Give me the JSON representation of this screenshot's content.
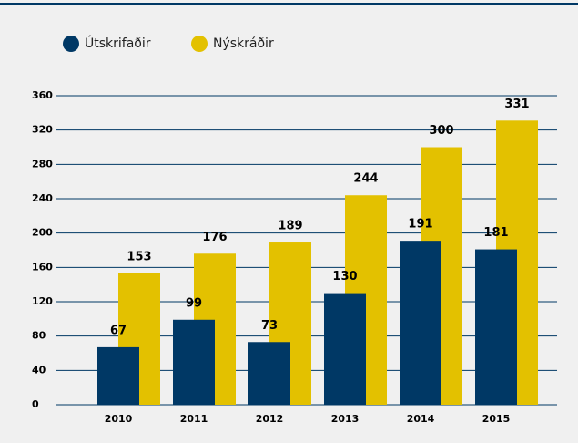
{
  "chart_data": {
    "type": "bar",
    "categories": [
      "2010",
      "2011",
      "2012",
      "2013",
      "2014",
      "2015"
    ],
    "series": [
      {
        "name": "Útskrifaðir",
        "color": "#003865",
        "values": [
          67,
          99,
          73,
          130,
          191,
          181
        ]
      },
      {
        "name": "Nýskráðir",
        "color": "#e3c100",
        "values": [
          153,
          176,
          189,
          244,
          300,
          331
        ]
      }
    ],
    "ylim": [
      0,
      360
    ],
    "yticks": [
      0,
      40,
      80,
      120,
      160,
      200,
      240,
      280,
      320,
      360
    ],
    "grid": true,
    "legend": "top-left"
  }
}
